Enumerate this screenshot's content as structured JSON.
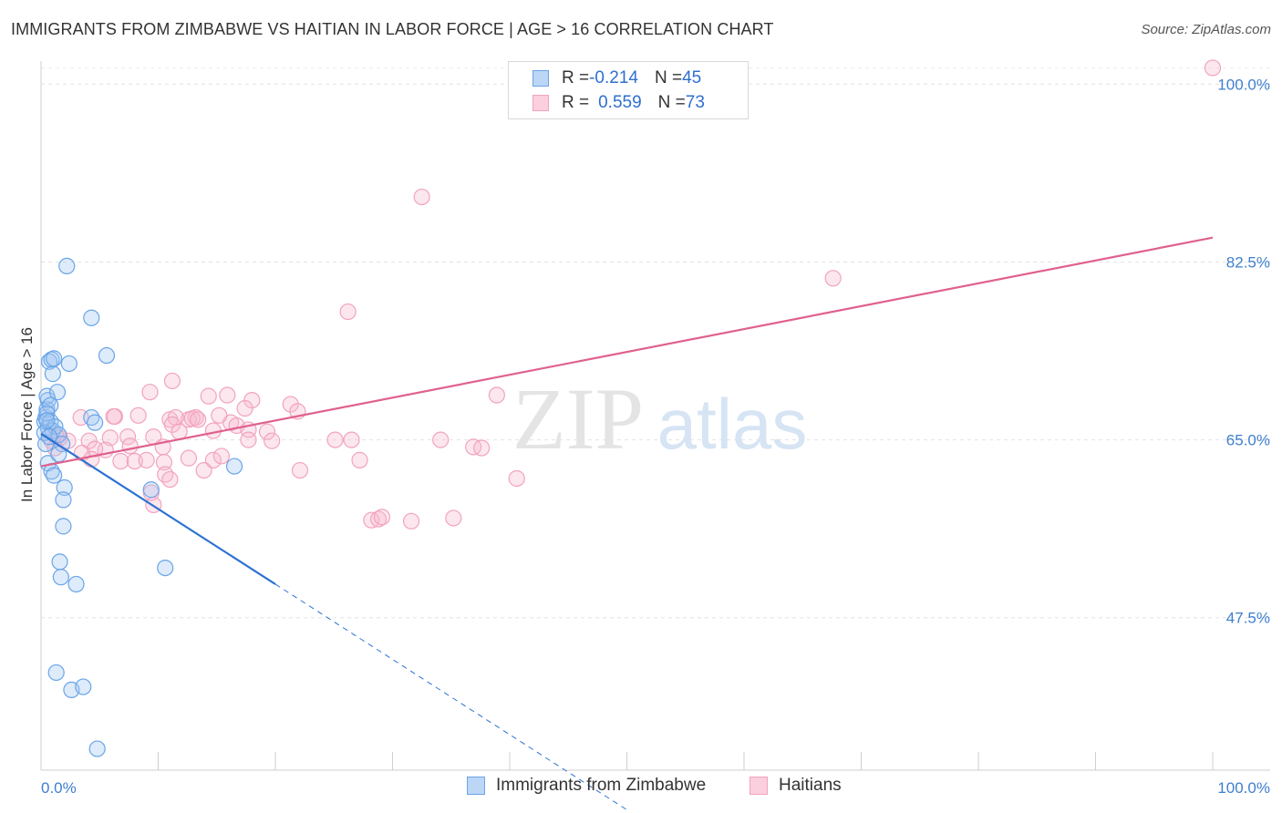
{
  "title": "IMMIGRANTS FROM ZIMBABWE VS HAITIAN IN LABOR FORCE | AGE > 16 CORRELATION CHART",
  "source": "Source: ZipAtlas.com",
  "watermark": {
    "zip": "ZIP",
    "atlas": "atlas"
  },
  "legend_top": [
    {
      "r_label": "R = ",
      "r_value": "-0.214",
      "n_label": "N = ",
      "n_value": "45"
    },
    {
      "r_label": "R = ",
      "r_value": "0.559",
      "n_label": "N = ",
      "n_value": "73"
    }
  ],
  "chart_data": {
    "type": "scatter",
    "title": "IMMIGRANTS FROM ZIMBABWE VS HAITIAN IN LABOR FORCE | AGE > 16 CORRELATION CHART",
    "xlabel": "",
    "ylabel": "In Labor Force | Age > 16",
    "xlim": [
      0,
      100
    ],
    "ylim": [
      32.5,
      102
    ],
    "y_ticks": [
      {
        "value": 100,
        "label": "100.0%"
      },
      {
        "value": 82.5,
        "label": "82.5%"
      },
      {
        "value": 65,
        "label": "65.0%"
      },
      {
        "value": 47.5,
        "label": "47.5%"
      }
    ],
    "x_tick_labels": {
      "min": "0.0%",
      "max": "100.0%"
    },
    "grid": true,
    "legend_position": "bottom",
    "series": [
      {
        "name": "Immigrants from Zimbabwe",
        "color": "#6aa5e8",
        "line_color": "#2c72d2",
        "trend": {
          "x": [
            0,
            20
          ],
          "y": [
            65.6,
            50.8
          ],
          "dashed_to": [
            50,
            28.6
          ]
        },
        "points": [
          [
            0.3,
            66.8
          ],
          [
            0.4,
            67.2
          ],
          [
            0.5,
            68.0
          ],
          [
            0.6,
            68.9
          ],
          [
            0.5,
            69.3
          ],
          [
            0.7,
            72.7
          ],
          [
            0.9,
            72.9
          ],
          [
            1.0,
            71.5
          ],
          [
            1.1,
            73.0
          ],
          [
            1.4,
            69.7
          ],
          [
            0.8,
            68.4
          ],
          [
            0.5,
            67.6
          ],
          [
            0.6,
            66.2
          ],
          [
            0.8,
            66.8
          ],
          [
            1.0,
            65.9
          ],
          [
            1.2,
            66.3
          ],
          [
            1.5,
            65.5
          ],
          [
            0.4,
            64.6
          ],
          [
            0.6,
            62.7
          ],
          [
            0.9,
            61.9
          ],
          [
            1.1,
            61.5
          ],
          [
            1.8,
            64.6
          ],
          [
            1.5,
            63.6
          ],
          [
            2.0,
            60.3
          ],
          [
            1.9,
            59.1
          ],
          [
            1.9,
            56.5
          ],
          [
            1.6,
            53.0
          ],
          [
            1.7,
            51.5
          ],
          [
            3.0,
            50.8
          ],
          [
            2.2,
            82.1
          ],
          [
            4.3,
            77.0
          ],
          [
            5.6,
            73.3
          ],
          [
            2.4,
            72.5
          ],
          [
            4.3,
            67.2
          ],
          [
            4.6,
            66.7
          ],
          [
            9.4,
            60.1
          ],
          [
            16.5,
            62.4
          ],
          [
            10.6,
            52.4
          ],
          [
            1.3,
            42.1
          ],
          [
            2.6,
            40.4
          ],
          [
            3.6,
            40.7
          ],
          [
            4.8,
            34.6
          ],
          [
            0.3,
            65.7
          ],
          [
            0.5,
            66.9
          ],
          [
            0.7,
            65.3
          ]
        ]
      },
      {
        "name": "Haitians",
        "color": "#f2a3bd",
        "line_color": "#e0608f",
        "trend": {
          "x": [
            0,
            100
          ],
          "y": [
            62.4,
            84.9
          ]
        },
        "points": [
          [
            100,
            101.6
          ],
          [
            32.5,
            88.9
          ],
          [
            67.6,
            80.9
          ],
          [
            26.2,
            77.6
          ],
          [
            38.9,
            69.4
          ],
          [
            9.3,
            69.7
          ],
          [
            11.2,
            70.8
          ],
          [
            14.3,
            69.3
          ],
          [
            15.9,
            69.4
          ],
          [
            18.0,
            68.9
          ],
          [
            21.3,
            68.5
          ],
          [
            21.9,
            67.8
          ],
          [
            17.4,
            68.1
          ],
          [
            16.2,
            66.7
          ],
          [
            16.7,
            66.4
          ],
          [
            17.7,
            66.0
          ],
          [
            19.3,
            65.8
          ],
          [
            15.2,
            67.4
          ],
          [
            13.2,
            67.2
          ],
          [
            14.7,
            65.9
          ],
          [
            12.6,
            67.0
          ],
          [
            12.9,
            67.1
          ],
          [
            13.4,
            67.0
          ],
          [
            11.0,
            67.0
          ],
          [
            11.5,
            67.2
          ],
          [
            11.2,
            66.5
          ],
          [
            11.8,
            65.8
          ],
          [
            8.3,
            67.4
          ],
          [
            6.3,
            67.3
          ],
          [
            6.2,
            67.3
          ],
          [
            3.4,
            67.2
          ],
          [
            4.1,
            64.9
          ],
          [
            5.9,
            65.2
          ],
          [
            7.4,
            65.3
          ],
          [
            9.6,
            65.3
          ],
          [
            10.4,
            64.3
          ],
          [
            7.6,
            64.4
          ],
          [
            5.5,
            64.0
          ],
          [
            4.6,
            64.1
          ],
          [
            2.3,
            64.9
          ],
          [
            1.6,
            65.2
          ],
          [
            1.3,
            65.3
          ],
          [
            0.9,
            64.9
          ],
          [
            1.2,
            64.2
          ],
          [
            3.5,
            63.7
          ],
          [
            4.3,
            63.1
          ],
          [
            6.8,
            62.9
          ],
          [
            8.0,
            62.9
          ],
          [
            9.0,
            63.0
          ],
          [
            10.5,
            62.8
          ],
          [
            12.6,
            63.2
          ],
          [
            14.7,
            63.0
          ],
          [
            15.4,
            63.4
          ],
          [
            17.7,
            65.0
          ],
          [
            19.7,
            64.9
          ],
          [
            25.1,
            65.0
          ],
          [
            26.5,
            65.0
          ],
          [
            27.2,
            63.0
          ],
          [
            34.1,
            65.0
          ],
          [
            36.9,
            64.3
          ],
          [
            37.6,
            64.2
          ],
          [
            40.6,
            61.2
          ],
          [
            22.1,
            62.0
          ],
          [
            13.9,
            62.0
          ],
          [
            10.6,
            61.6
          ],
          [
            11.0,
            61.1
          ],
          [
            9.4,
            59.8
          ],
          [
            9.6,
            58.6
          ],
          [
            28.2,
            57.1
          ],
          [
            28.8,
            57.2
          ],
          [
            29.1,
            57.4
          ],
          [
            35.2,
            57.3
          ],
          [
            31.6,
            57.0
          ]
        ]
      }
    ]
  }
}
